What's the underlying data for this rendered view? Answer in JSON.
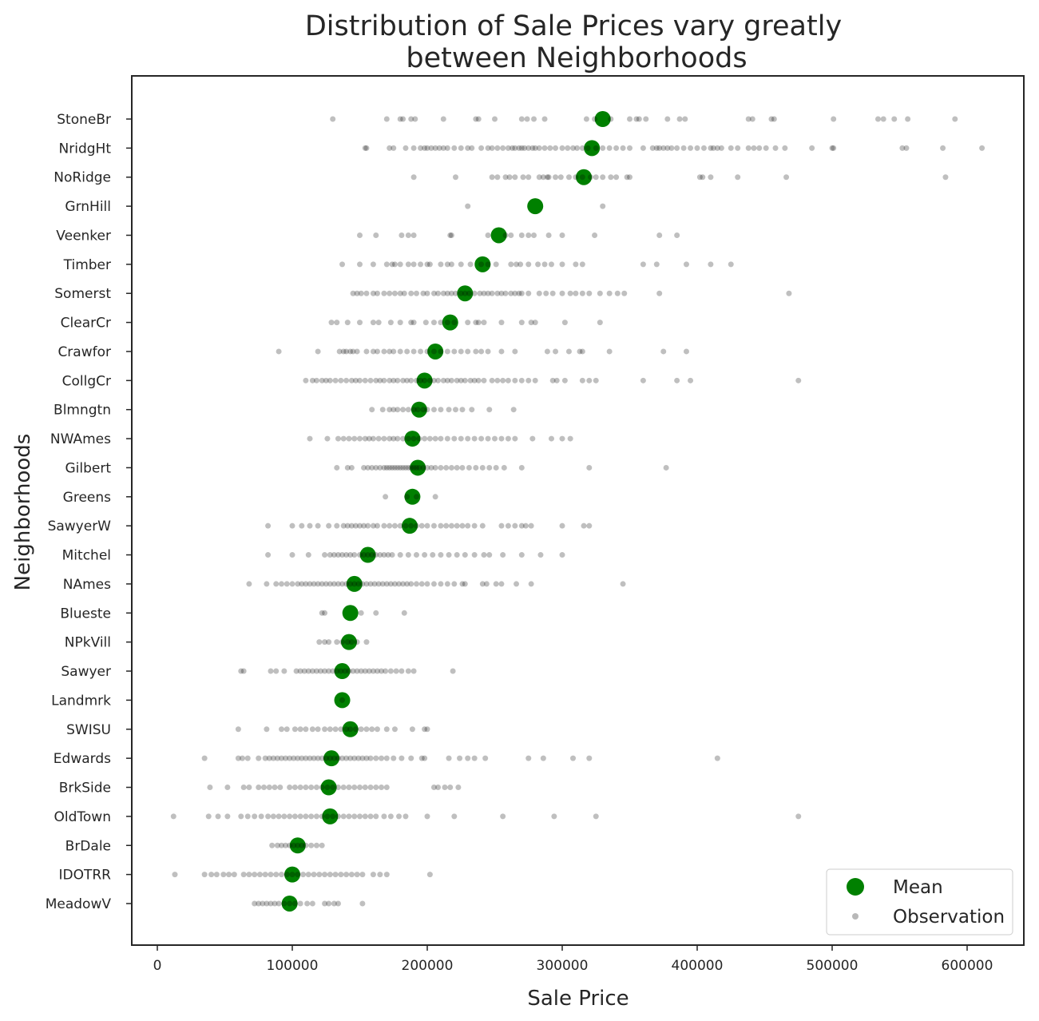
{
  "chart_data": {
    "type": "scatter",
    "title_line1": "Distribution of Sale Prices vary greatly",
    "title_line2": "between Neighborhoods",
    "xlabel": "Sale Price",
    "ylabel": "Neighborhoods",
    "xlim": [
      -19000,
      641000
    ],
    "xticks": [
      0,
      100000,
      200000,
      300000,
      400000,
      500000,
      600000
    ],
    "xtick_labels": [
      "0",
      "100000",
      "200000",
      "300000",
      "400000",
      "500000",
      "600000"
    ],
    "grid": false,
    "legend": {
      "placement": "lower-right",
      "entries": [
        {
          "label": "Mean",
          "marker": "large-circle",
          "color": "#008000"
        },
        {
          "label": "Observation",
          "marker": "small-circle",
          "color": "#808080"
        }
      ]
    },
    "colors": {
      "mean": "#008000",
      "observation": "#000000"
    },
    "series": [
      {
        "name": "Mean",
        "role": "mean"
      },
      {
        "name": "Observation",
        "role": "observation"
      }
    ],
    "categories": [
      {
        "name": "StoneBr",
        "mean": 330000,
        "obs": [
          130000,
          170000,
          180000,
          182000,
          188000,
          191000,
          212000,
          236000,
          238000,
          250000,
          270000,
          274000,
          279000,
          287000,
          318000,
          324000,
          336000,
          350000,
          355000,
          357000,
          362000,
          378000,
          387000,
          391000,
          438000,
          441000,
          455000,
          457000,
          501000,
          534000,
          538000,
          546000,
          556000,
          591000
        ]
      },
      {
        "name": "NridgHt",
        "mean": 322000,
        "obs": [
          154000,
          155000,
          172000,
          175000,
          184000,
          190000,
          195000,
          198000,
          200000,
          203000,
          206000,
          209000,
          212000,
          215000,
          220000,
          225000,
          230000,
          233000,
          240000,
          245000,
          248000,
          252000,
          256000,
          260000,
          263000,
          265000,
          268000,
          270000,
          272000,
          275000,
          278000,
          280000,
          283000,
          287000,
          291000,
          295000,
          300000,
          304000,
          308000,
          311000,
          315000,
          319000,
          325000,
          330000,
          335000,
          340000,
          345000,
          350000,
          360000,
          367000,
          370000,
          372000,
          375000,
          378000,
          381000,
          385000,
          390000,
          395000,
          400000,
          405000,
          410000,
          412000,
          415000,
          418000,
          425000,
          430000,
          438000,
          442000,
          446000,
          451000,
          458000,
          465000,
          485000,
          500000,
          501000,
          552000,
          555000,
          582000,
          611000
        ]
      },
      {
        "name": "NoRidge",
        "mean": 316000,
        "obs": [
          190000,
          221000,
          248000,
          252000,
          258000,
          261000,
          265000,
          271000,
          275000,
          283000,
          286000,
          289000,
          290000,
          295000,
          299000,
          305000,
          310000,
          315000,
          321000,
          325000,
          330000,
          336000,
          340000,
          348000,
          350000,
          402000,
          404000,
          410000,
          430000,
          466000,
          584000
        ]
      },
      {
        "name": "GrnHill",
        "mean": 280000,
        "obs": [
          230000,
          330000
        ]
      },
      {
        "name": "Veenker",
        "mean": 253000,
        "obs": [
          150000,
          162000,
          181000,
          186000,
          190000,
          217000,
          218000,
          245000,
          258000,
          262000,
          270000,
          275000,
          279000,
          290000,
          300000,
          324000,
          372000,
          385000
        ]
      },
      {
        "name": "Timber",
        "mean": 241000,
        "obs": [
          137000,
          150000,
          160000,
          170000,
          174000,
          176000,
          180000,
          186000,
          190000,
          195000,
          200000,
          202000,
          210000,
          215000,
          218000,
          225000,
          232000,
          240000,
          245000,
          251000,
          262000,
          266000,
          269000,
          275000,
          282000,
          287000,
          292000,
          300000,
          310000,
          315000,
          360000,
          370000,
          392000,
          410000,
          425000
        ]
      },
      {
        "name": "Somerst",
        "mean": 228000,
        "obs": [
          145000,
          148000,
          151000,
          155000,
          160000,
          163000,
          168000,
          172000,
          176000,
          180000,
          183000,
          188000,
          192000,
          197000,
          200000,
          205000,
          208000,
          212000,
          215000,
          218000,
          221000,
          225000,
          228000,
          231000,
          235000,
          239000,
          242000,
          245000,
          248000,
          252000,
          255000,
          258000,
          262000,
          265000,
          268000,
          270000,
          275000,
          283000,
          288000,
          293000,
          300000,
          306000,
          310000,
          315000,
          320000,
          328000,
          335000,
          341000,
          346000,
          372000,
          468000
        ]
      },
      {
        "name": "ClearCr",
        "mean": 217000,
        "obs": [
          129000,
          133000,
          141000,
          150000,
          160000,
          164000,
          173000,
          180000,
          188000,
          190000,
          199000,
          205000,
          210000,
          215000,
          220000,
          230000,
          236000,
          238000,
          242000,
          255000,
          270000,
          277000,
          280000,
          302000,
          328000
        ]
      },
      {
        "name": "Crawfor",
        "mean": 206000,
        "obs": [
          90000,
          119000,
          135000,
          138000,
          140000,
          143000,
          145000,
          148000,
          155000,
          160000,
          163000,
          168000,
          172000,
          175000,
          180000,
          185000,
          190000,
          195000,
          200000,
          205000,
          210000,
          215000,
          220000,
          225000,
          230000,
          236000,
          240000,
          245000,
          255000,
          265000,
          289000,
          295000,
          305000,
          313000,
          315000,
          335000,
          375000,
          392000
        ]
      },
      {
        "name": "CollgCr",
        "mean": 198000,
        "obs": [
          110000,
          115000,
          118000,
          122000,
          125000,
          128000,
          132000,
          136000,
          140000,
          144000,
          147000,
          150000,
          154000,
          158000,
          162000,
          165000,
          168000,
          172000,
          175000,
          178000,
          182000,
          185000,
          188000,
          192000,
          195000,
          198000,
          202000,
          205000,
          208000,
          212000,
          215000,
          218000,
          222000,
          225000,
          228000,
          232000,
          235000,
          238000,
          242000,
          248000,
          252000,
          256000,
          260000,
          265000,
          270000,
          275000,
          280000,
          293000,
          296000,
          302000,
          315000,
          320000,
          325000,
          360000,
          385000,
          395000,
          475000
        ]
      },
      {
        "name": "Blmngtn",
        "mean": 194000,
        "obs": [
          159000,
          167000,
          172000,
          175000,
          178000,
          182000,
          186000,
          190000,
          193000,
          197000,
          200000,
          205000,
          210000,
          216000,
          221000,
          226000,
          233000,
          246000,
          264000
        ]
      },
      {
        "name": "NWAmes",
        "mean": 189000,
        "obs": [
          113000,
          126000,
          134000,
          138000,
          142000,
          146000,
          150000,
          154000,
          157000,
          160000,
          164000,
          168000,
          172000,
          175000,
          178000,
          182000,
          186000,
          190000,
          194000,
          198000,
          202000,
          206000,
          210000,
          215000,
          220000,
          225000,
          230000,
          235000,
          240000,
          245000,
          250000,
          255000,
          260000,
          265000,
          278000,
          292000,
          300000,
          306000
        ]
      },
      {
        "name": "Gilbert",
        "mean": 193000,
        "obs": [
          133000,
          141000,
          144000,
          153000,
          156000,
          159000,
          162000,
          165000,
          168000,
          170000,
          172000,
          174000,
          176000,
          178000,
          180000,
          182000,
          184000,
          186000,
          188000,
          190000,
          192000,
          194000,
          197000,
          200000,
          203000,
          206000,
          210000,
          214000,
          218000,
          222000,
          226000,
          231000,
          236000,
          241000,
          246000,
          251000,
          257000,
          270000,
          320000,
          377000
        ]
      },
      {
        "name": "Greens",
        "mean": 189000,
        "obs": [
          169000,
          185000,
          192000,
          206000
        ]
      },
      {
        "name": "SawyerW",
        "mean": 187000,
        "obs": [
          82000,
          100000,
          107000,
          113000,
          119000,
          127000,
          133000,
          138000,
          141000,
          144000,
          147000,
          150000,
          153000,
          156000,
          160000,
          163000,
          168000,
          172000,
          176000,
          180000,
          184000,
          188000,
          192000,
          196000,
          200000,
          205000,
          210000,
          214000,
          218000,
          222000,
          226000,
          230000,
          235000,
          241000,
          255000,
          260000,
          265000,
          270000,
          273000,
          277000,
          300000,
          316000,
          320000
        ]
      },
      {
        "name": "Mitchel",
        "mean": 156000,
        "obs": [
          82000,
          100000,
          112000,
          124000,
          128000,
          131000,
          134000,
          137000,
          140000,
          143000,
          146000,
          150000,
          153000,
          156000,
          159000,
          162000,
          165000,
          168000,
          171000,
          174000,
          180000,
          186000,
          192000,
          198000,
          204000,
          210000,
          216000,
          222000,
          228000,
          235000,
          242000,
          246000,
          256000,
          270000,
          284000,
          300000
        ]
      },
      {
        "name": "NAmes",
        "mean": 146000,
        "obs": [
          68000,
          81000,
          88000,
          92000,
          96000,
          100000,
          104000,
          107000,
          110000,
          113000,
          116000,
          119000,
          122000,
          125000,
          128000,
          131000,
          134000,
          137000,
          140000,
          143000,
          146000,
          149000,
          152000,
          155000,
          158000,
          161000,
          164000,
          167000,
          170000,
          173000,
          176000,
          179000,
          182000,
          185000,
          188000,
          192000,
          196000,
          200000,
          205000,
          210000,
          215000,
          220000,
          226000,
          228000,
          241000,
          244000,
          251000,
          255000,
          266000,
          277000,
          345000
        ]
      },
      {
        "name": "Blueste",
        "mean": 143000,
        "obs": [
          122000,
          124000,
          151000,
          162000,
          183000
        ]
      },
      {
        "name": "NPkVill",
        "mean": 142000,
        "obs": [
          120000,
          124000,
          127000,
          133000,
          137000,
          141000,
          144000,
          148000,
          155000
        ]
      },
      {
        "name": "Sawyer",
        "mean": 137000,
        "obs": [
          62000,
          64000,
          84000,
          88000,
          94000,
          103000,
          106000,
          109000,
          112000,
          115000,
          118000,
          121000,
          124000,
          127000,
          130000,
          133000,
          136000,
          139000,
          142000,
          145000,
          148000,
          151000,
          154000,
          157000,
          160000,
          163000,
          166000,
          169000,
          173000,
          177000,
          181000,
          186000,
          190000,
          219000
        ]
      },
      {
        "name": "Landmrk",
        "mean": 137000,
        "obs": [
          137000
        ]
      },
      {
        "name": "SWISU",
        "mean": 143000,
        "obs": [
          60000,
          81000,
          92000,
          96000,
          102000,
          106000,
          110000,
          115000,
          119000,
          124000,
          128000,
          132000,
          136000,
          140000,
          143000,
          147000,
          151000,
          155000,
          159000,
          163000,
          170000,
          176000,
          189000,
          198000,
          200000
        ]
      },
      {
        "name": "Edwards",
        "mean": 129000,
        "obs": [
          35000,
          60000,
          63000,
          67000,
          75000,
          80000,
          83000,
          86000,
          89000,
          92000,
          95000,
          98000,
          101000,
          104000,
          107000,
          110000,
          113000,
          116000,
          119000,
          122000,
          125000,
          128000,
          131000,
          134000,
          137000,
          140000,
          143000,
          146000,
          149000,
          152000,
          155000,
          158000,
          162000,
          166000,
          170000,
          175000,
          181000,
          188000,
          196000,
          198000,
          216000,
          224000,
          230000,
          235000,
          243000,
          275000,
          286000,
          308000,
          320000,
          415000
        ]
      },
      {
        "name": "BrkSide",
        "mean": 127000,
        "obs": [
          39000,
          52000,
          64000,
          68000,
          75000,
          79000,
          83000,
          87000,
          91000,
          98000,
          102000,
          106000,
          110000,
          114000,
          118000,
          122000,
          126000,
          130000,
          134000,
          138000,
          142000,
          146000,
          150000,
          154000,
          158000,
          162000,
          166000,
          170000,
          205000,
          208000,
          213000,
          217000,
          223000
        ]
      },
      {
        "name": "OldTown",
        "mean": 128000,
        "obs": [
          12000,
          38000,
          45000,
          52000,
          62000,
          67000,
          72000,
          77000,
          82000,
          86000,
          90000,
          94000,
          98000,
          102000,
          106000,
          110000,
          114000,
          118000,
          122000,
          126000,
          130000,
          134000,
          138000,
          142000,
          146000,
          150000,
          154000,
          158000,
          162000,
          168000,
          173000,
          179000,
          184000,
          200000,
          220000,
          256000,
          294000,
          325000,
          475000
        ]
      },
      {
        "name": "BrDale",
        "mean": 104000,
        "obs": [
          85000,
          89000,
          92000,
          95000,
          98000,
          101000,
          104000,
          107000,
          110000,
          114000,
          118000,
          122000
        ]
      },
      {
        "name": "IDOTRR",
        "mean": 100000,
        "obs": [
          13000,
          35000,
          40000,
          44000,
          49000,
          53000,
          57000,
          64000,
          68000,
          72000,
          76000,
          80000,
          84000,
          88000,
          92000,
          96000,
          100000,
          104000,
          108000,
          112000,
          116000,
          120000,
          124000,
          128000,
          132000,
          136000,
          140000,
          144000,
          148000,
          152000,
          160000,
          165000,
          170000,
          202000
        ]
      },
      {
        "name": "MeadowV",
        "mean": 98000,
        "obs": [
          72000,
          75000,
          78000,
          81000,
          84000,
          87000,
          90000,
          94000,
          98000,
          102000,
          106000,
          111000,
          115000,
          124000,
          127000,
          131000,
          134000,
          152000
        ]
      }
    ]
  }
}
